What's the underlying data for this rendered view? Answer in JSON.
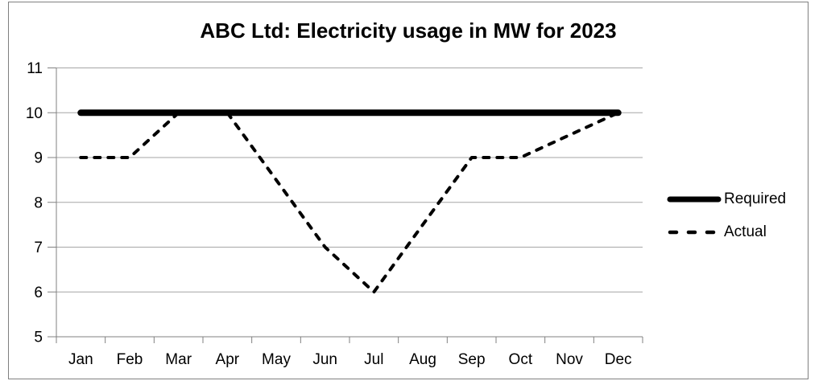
{
  "chart_data": {
    "type": "line",
    "title": "ABC Ltd: Electricity usage in MW for 2023",
    "categories": [
      "Jan",
      "Feb",
      "Mar",
      "Apr",
      "May",
      "Jun",
      "Jul",
      "Aug",
      "Sep",
      "Oct",
      "Nov",
      "Dec"
    ],
    "series": [
      {
        "name": "Required",
        "style": "solid",
        "stroke_width": 8,
        "color": "#000000",
        "values": [
          10,
          10,
          10,
          10,
          10,
          10,
          10,
          10,
          10,
          10,
          10,
          10
        ]
      },
      {
        "name": "Actual",
        "style": "dashed",
        "stroke_width": 4,
        "color": "#000000",
        "values": [
          9,
          9,
          10,
          10,
          8.5,
          7,
          6,
          7.5,
          9,
          9,
          9.5,
          10
        ]
      }
    ],
    "xlabel": "",
    "ylabel": "",
    "ylim": [
      5,
      11
    ],
    "yticks": [
      5,
      6,
      7,
      8,
      9,
      10,
      11
    ],
    "grid": true,
    "legend_position": "right",
    "colors": {
      "gridline": "#a6a6a6",
      "axis": "#808080",
      "border": "#808080",
      "text": "#000000",
      "background": "#ffffff"
    }
  }
}
